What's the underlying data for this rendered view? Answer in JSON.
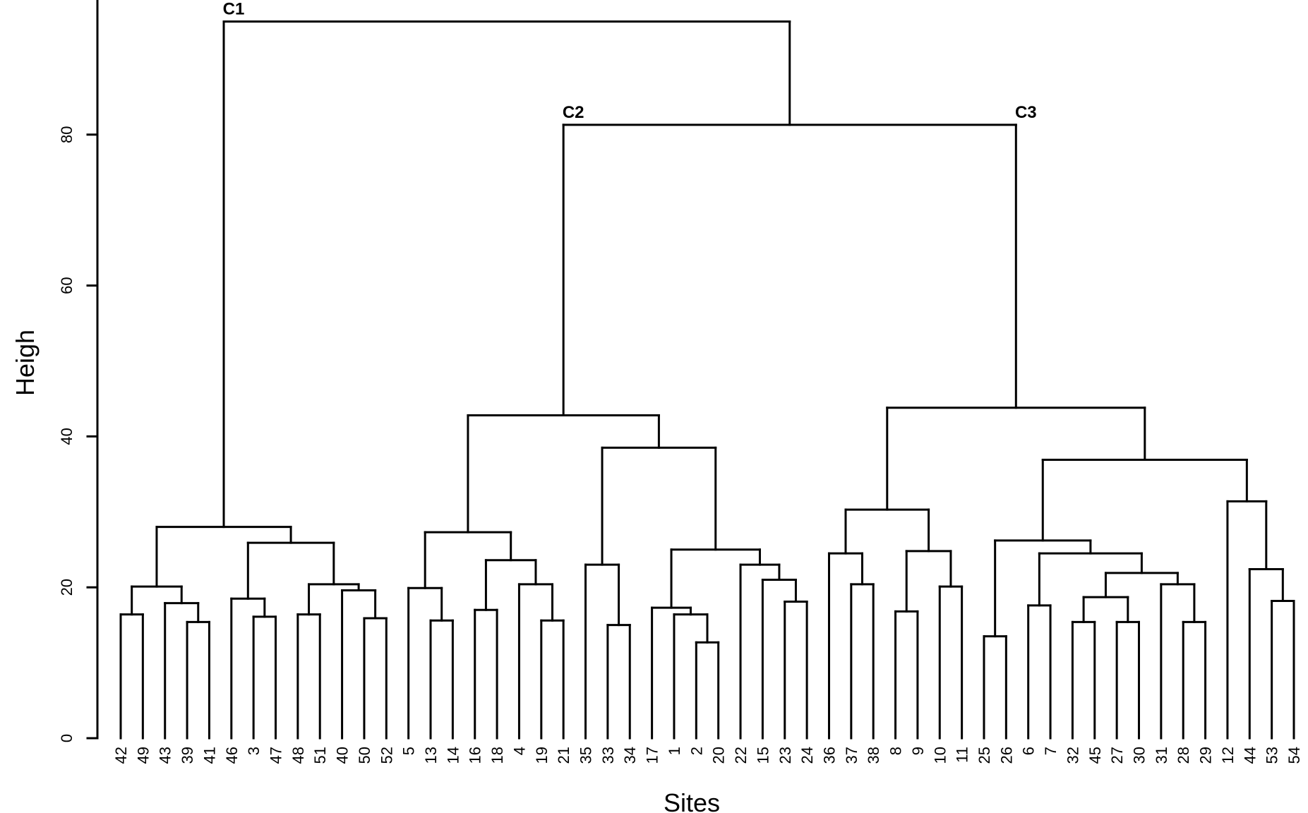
{
  "chart_data": {
    "type": "dendrogram",
    "title": "",
    "xlabel": "Sites",
    "ylabel": "Heigh",
    "ylim": [
      0,
      95
    ],
    "yticks": [
      0,
      20,
      40,
      60,
      80
    ],
    "grid": false,
    "leaf_order": [
      "42",
      "49",
      "43",
      "39",
      "41",
      "46",
      "3",
      "47",
      "48",
      "51",
      "40",
      "50",
      "52",
      "5",
      "13",
      "14",
      "16",
      "18",
      "4",
      "19",
      "21",
      "35",
      "33",
      "34",
      "17",
      "1",
      "2",
      "20",
      "22",
      "15",
      "23",
      "24",
      "36",
      "37",
      "38",
      "8",
      "9",
      "10",
      "11",
      "25",
      "26",
      "6",
      "7",
      "32",
      "45",
      "27",
      "30",
      "31",
      "28",
      "29",
      "12",
      "44",
      "53",
      "54"
    ],
    "tree": {
      "h": 95.0,
      "c": [
        {
          "h": 28.0,
          "label": "C1",
          "c": [
            {
              "h": 20.1,
              "c": [
                {
                  "h": 16.4,
                  "c": [
                    "42",
                    "49"
                  ]
                },
                {
                  "h": 17.9,
                  "c": [
                    "43",
                    {
                      "h": 15.4,
                      "c": [
                        "39",
                        "41"
                      ]
                    }
                  ]
                }
              ]
            },
            {
              "h": 25.9,
              "c": [
                {
                  "h": 18.5,
                  "c": [
                    "46",
                    {
                      "h": 16.1,
                      "c": [
                        "3",
                        "47"
                      ]
                    }
                  ]
                },
                {
                  "h": 20.4,
                  "c": [
                    {
                      "h": 16.4,
                      "c": [
                        "48",
                        "51"
                      ]
                    },
                    {
                      "h": 19.6,
                      "c": [
                        "40",
                        {
                          "h": 15.9,
                          "c": [
                            "50",
                            "52"
                          ]
                        }
                      ]
                    }
                  ]
                }
              ]
            }
          ]
        },
        {
          "h": 81.3,
          "c": [
            {
              "h": 42.8,
              "label": "C2",
              "c": [
                {
                  "h": 27.3,
                  "c": [
                    {
                      "h": 19.9,
                      "c": [
                        "5",
                        {
                          "h": 15.6,
                          "c": [
                            "13",
                            "14"
                          ]
                        }
                      ]
                    },
                    {
                      "h": 23.6,
                      "c": [
                        {
                          "h": 17.0,
                          "c": [
                            "16",
                            "18"
                          ]
                        },
                        {
                          "h": 20.4,
                          "c": [
                            "4",
                            {
                              "h": 15.6,
                              "c": [
                                "19",
                                "21"
                              ]
                            }
                          ]
                        }
                      ]
                    }
                  ]
                },
                {
                  "h": 38.5,
                  "c": [
                    {
                      "h": 23.0,
                      "c": [
                        "35",
                        {
                          "h": 15.0,
                          "c": [
                            "33",
                            "34"
                          ]
                        }
                      ]
                    },
                    {
                      "h": 25.0,
                      "c": [
                        {
                          "h": 17.3,
                          "c": [
                            "17",
                            {
                              "h": 16.4,
                              "c": [
                                "1",
                                {
                                  "h": 12.7,
                                  "c": [
                                    "2",
                                    "20"
                                  ]
                                }
                              ]
                            }
                          ]
                        },
                        {
                          "h": 23.0,
                          "c": [
                            "22",
                            {
                              "h": 21.0,
                              "c": [
                                "15",
                                {
                                  "h": 18.1,
                                  "c": [
                                    "23",
                                    "24"
                                  ]
                                }
                              ]
                            }
                          ]
                        }
                      ]
                    }
                  ]
                }
              ]
            },
            {
              "h": 43.8,
              "label": "C3",
              "c": [
                {
                  "h": 30.3,
                  "c": [
                    {
                      "h": 24.5,
                      "c": [
                        "36",
                        {
                          "h": 20.4,
                          "c": [
                            "37",
                            "38"
                          ]
                        }
                      ]
                    },
                    {
                      "h": 24.8,
                      "c": [
                        {
                          "h": 16.8,
                          "c": [
                            "8",
                            "9"
                          ]
                        },
                        {
                          "h": 20.1,
                          "c": [
                            "10",
                            "11"
                          ]
                        }
                      ]
                    }
                  ]
                },
                {
                  "h": 36.9,
                  "c": [
                    {
                      "h": 26.2,
                      "c": [
                        {
                          "h": 13.5,
                          "c": [
                            "25",
                            "26"
                          ]
                        },
                        {
                          "h": 24.5,
                          "c": [
                            {
                              "h": 17.6,
                              "c": [
                                "6",
                                "7"
                              ]
                            },
                            {
                              "h": 21.9,
                              "c": [
                                {
                                  "h": 18.7,
                                  "c": [
                                    {
                                      "h": 15.4,
                                      "c": [
                                        "32",
                                        "45"
                                      ]
                                    },
                                    {
                                      "h": 15.4,
                                      "c": [
                                        "27",
                                        "30"
                                      ]
                                    }
                                  ]
                                },
                                {
                                  "h": 20.4,
                                  "c": [
                                    "31",
                                    {
                                      "h": 15.4,
                                      "c": [
                                        "28",
                                        "29"
                                      ]
                                    }
                                  ]
                                }
                              ]
                            }
                          ]
                        }
                      ]
                    },
                    {
                      "h": 31.4,
                      "c": [
                        "12",
                        {
                          "h": 22.4,
                          "c": [
                            "44",
                            {
                              "h": 18.2,
                              "c": [
                                "53",
                                "54"
                              ]
                            }
                          ]
                        }
                      ]
                    }
                  ]
                }
              ]
            }
          ]
        }
      ]
    }
  }
}
